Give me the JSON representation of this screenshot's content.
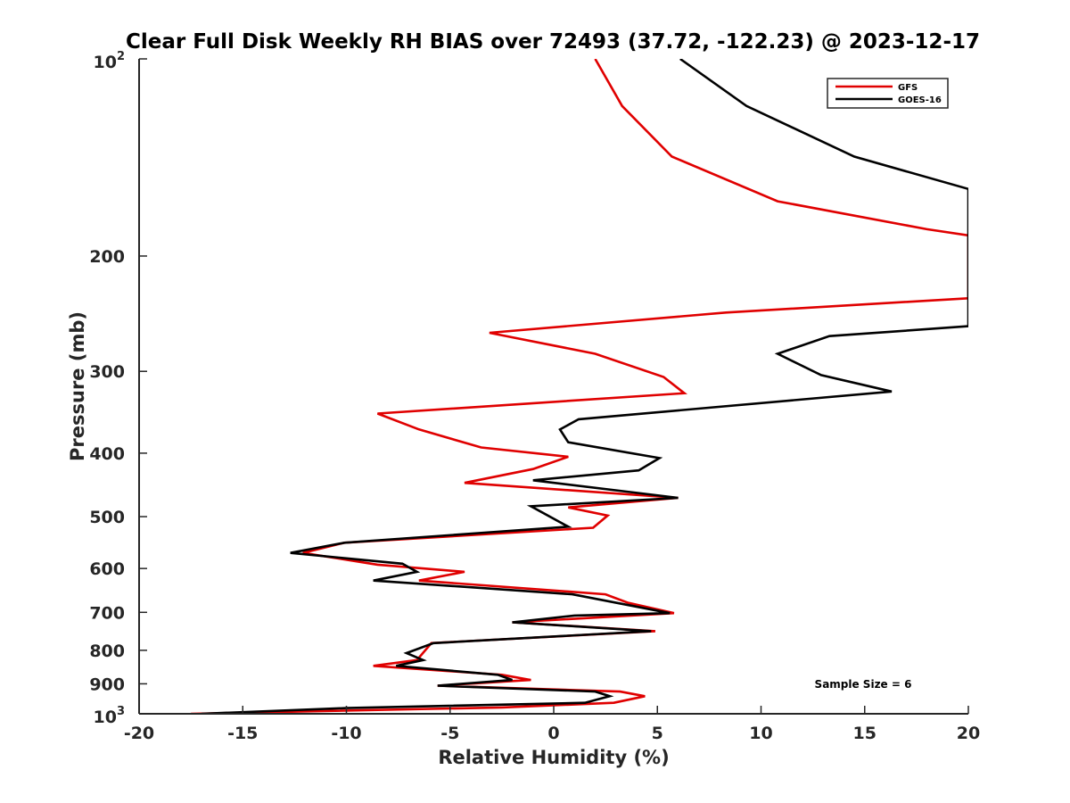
{
  "chart_data": {
    "type": "line",
    "title": "Clear Full Disk Weekly RH BIAS over 72493 (37.72, -122.23) @ 2023-12-17",
    "xlabel": "Relative Humidity (%)",
    "ylabel": "Pressure (mb)",
    "xlim": [
      -20,
      20
    ],
    "ylim": [
      100,
      1000
    ],
    "y_scale": "log",
    "y_reversed": true,
    "x_ticks": [
      -20,
      -15,
      -10,
      -5,
      0,
      5,
      10,
      15,
      20
    ],
    "x_tick_labels": [
      "-20",
      "-15",
      "-10",
      "-5",
      "0",
      "5",
      "10",
      "15",
      "20"
    ],
    "y_ticks": [
      200,
      300,
      400,
      500,
      600,
      700,
      800,
      900
    ],
    "y_tick_labels": [
      "200",
      "300",
      "400",
      "500",
      "600",
      "700",
      "800",
      "900"
    ],
    "y_end_labels": {
      "top_base": "10",
      "top_exp": "2",
      "bottom_base": "10",
      "bottom_exp": "3"
    },
    "grid": false,
    "legend_position": "top-right",
    "annotation": "Sample Size = 6",
    "series": [
      {
        "name": "GFS",
        "color": "#e00000",
        "points": [
          [
            2.0,
            100
          ],
          [
            3.3,
            118
          ],
          [
            5.7,
            141
          ],
          [
            10.8,
            165
          ],
          [
            18.0,
            182
          ],
          [
            20.0,
            186
          ],
          [
            20.0,
            232
          ],
          [
            8.3,
            244
          ],
          [
            -3.1,
            262
          ],
          [
            2.0,
            282
          ],
          [
            5.3,
            306
          ],
          [
            6.3,
            324
          ],
          [
            -8.5,
            348
          ],
          [
            -6.5,
            368
          ],
          [
            -3.5,
            392
          ],
          [
            0.7,
            405
          ],
          [
            -1.0,
            423
          ],
          [
            -4.3,
            444
          ],
          [
            6.0,
            468
          ],
          [
            0.7,
            484
          ],
          [
            2.6,
            498
          ],
          [
            1.9,
            520
          ],
          [
            -10.1,
            548
          ],
          [
            -12.1,
            568
          ],
          [
            -8.5,
            592
          ],
          [
            -4.3,
            607
          ],
          [
            -6.5,
            626
          ],
          [
            2.5,
            657
          ],
          [
            3.6,
            677
          ],
          [
            5.8,
            702
          ],
          [
            -2.0,
            725
          ],
          [
            4.9,
            748
          ],
          [
            -5.9,
            780
          ],
          [
            -6.6,
            828
          ],
          [
            -8.7,
            845
          ],
          [
            -2.5,
            872
          ],
          [
            -1.1,
            888
          ],
          [
            -5.6,
            906
          ],
          [
            3.2,
            925
          ],
          [
            4.4,
            940
          ],
          [
            2.9,
            962
          ],
          [
            -2.5,
            978
          ],
          [
            -17.5,
            1000
          ]
        ]
      },
      {
        "name": "GOES-16",
        "color": "#000000",
        "points": [
          [
            6.1,
            100
          ],
          [
            9.3,
            118
          ],
          [
            14.5,
            141
          ],
          [
            20.0,
            158
          ],
          [
            20.0,
            256
          ],
          [
            13.3,
            265
          ],
          [
            10.8,
            282
          ],
          [
            12.9,
            304
          ],
          [
            16.3,
            322
          ],
          [
            1.2,
            355
          ],
          [
            0.3,
            368
          ],
          [
            0.7,
            385
          ],
          [
            5.1,
            407
          ],
          [
            4.1,
            425
          ],
          [
            -1.0,
            440
          ],
          [
            6.0,
            468
          ],
          [
            -1.1,
            482
          ],
          [
            0.7,
            518
          ],
          [
            -10.1,
            548
          ],
          [
            -12.7,
            568
          ],
          [
            -7.3,
            590
          ],
          [
            -6.6,
            607
          ],
          [
            -8.7,
            626
          ],
          [
            0.9,
            657
          ],
          [
            5.6,
            702
          ],
          [
            1.0,
            708
          ],
          [
            -2.0,
            725
          ],
          [
            4.7,
            748
          ],
          [
            -5.8,
            780
          ],
          [
            -7.1,
            808
          ],
          [
            -6.3,
            828
          ],
          [
            -7.6,
            845
          ],
          [
            -2.7,
            872
          ],
          [
            -2.0,
            888
          ],
          [
            -5.6,
            906
          ],
          [
            2.0,
            925
          ],
          [
            2.7,
            940
          ],
          [
            1.5,
            962
          ],
          [
            -10.0,
            980
          ],
          [
            -17.0,
            1000
          ]
        ]
      }
    ]
  }
}
